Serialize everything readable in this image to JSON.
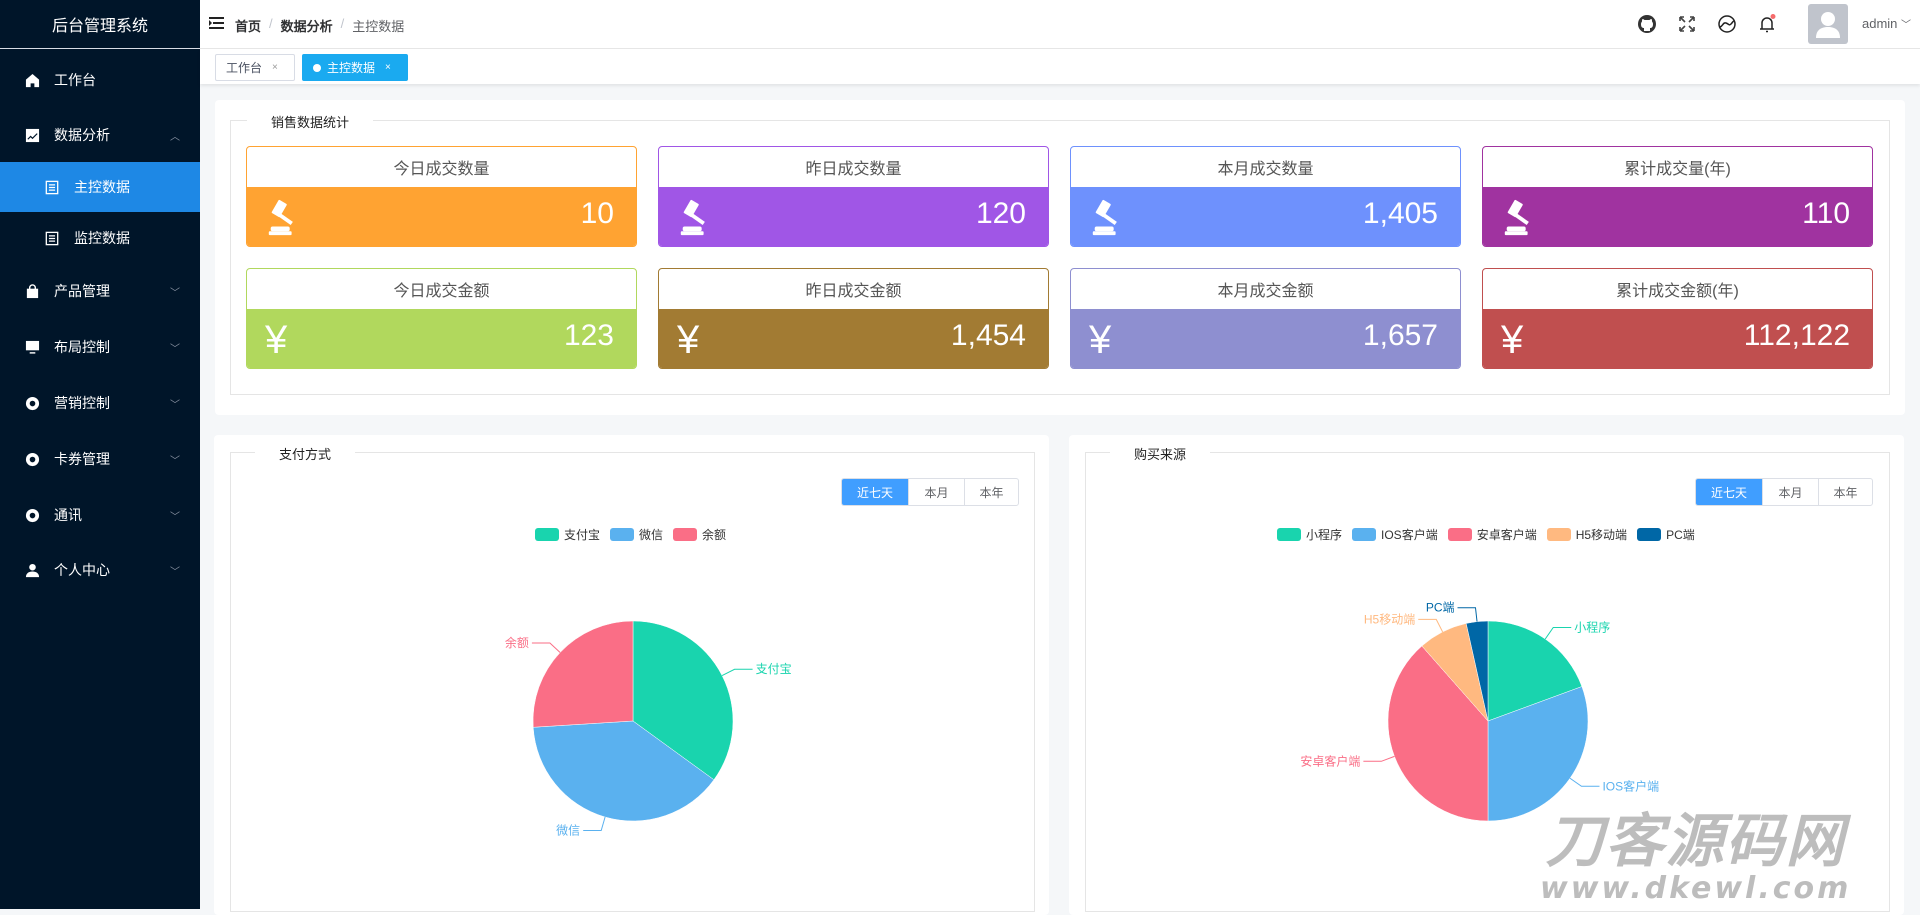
{
  "app": {
    "title": "后台管理系统"
  },
  "sidebar": {
    "items": [
      {
        "label": "工作台",
        "icon": "home-icon"
      },
      {
        "label": "数据分析",
        "icon": "chart-icon",
        "expanded": true
      },
      {
        "label": "主控数据",
        "icon": "document-icon",
        "active": true
      },
      {
        "label": "监控数据",
        "icon": "document-icon"
      },
      {
        "label": "产品管理",
        "icon": "bag-icon"
      },
      {
        "label": "布局控制",
        "icon": "monitor-icon"
      },
      {
        "label": "营销控制",
        "icon": "lifebuoy-icon"
      },
      {
        "label": "卡券管理",
        "icon": "lifebuoy-icon"
      },
      {
        "label": "通讯",
        "icon": "lifebuoy-icon"
      },
      {
        "label": "个人中心",
        "icon": "user-icon"
      }
    ]
  },
  "header": {
    "breadcrumb": [
      "首页",
      "数据分析",
      "主控数据"
    ],
    "separator": "/",
    "user": "admin",
    "notification_dot_color": "#f56c6c"
  },
  "tabs": [
    {
      "label": "工作台",
      "close": "×"
    },
    {
      "label": "主控数据",
      "close": "×",
      "active": true
    }
  ],
  "sales": {
    "title": "销售数据统计",
    "cards": [
      {
        "label": "今日成交数量",
        "value": "10",
        "icon": "gavel-icon",
        "color": "#ffa332"
      },
      {
        "label": "昨日成交数量",
        "value": "120",
        "icon": "gavel-icon",
        "color": "#a056e6"
      },
      {
        "label": "本月成交数量",
        "value": "1,405",
        "icon": "gavel-icon",
        "color": "#6e91fd"
      },
      {
        "label": "累计成交量(年)",
        "value": "110",
        "icon": "gavel-icon",
        "color": "#a033a0"
      },
      {
        "label": "今日成交金额",
        "value": "123",
        "icon": "yen-icon",
        "color": "#b1d85d"
      },
      {
        "label": "昨日成交金额",
        "value": "1,454",
        "icon": "yen-icon",
        "color": "#a27b33"
      },
      {
        "label": "本月成交金额",
        "value": "1,657",
        "icon": "yen-icon",
        "color": "#8e8fd0"
      },
      {
        "label": "累计成交金额(年)",
        "value": "112,122",
        "icon": "yen-icon",
        "color": "#c04f4f"
      }
    ],
    "yen": "¥"
  },
  "ranges": [
    "近七天",
    "本月",
    "本年"
  ],
  "chart_data": [
    {
      "type": "pie",
      "title": "支付方式",
      "legend_position": "top",
      "selected_range": "近七天",
      "categories": [
        "支付宝",
        "微信",
        "余额"
      ],
      "values": [
        35,
        39,
        26
      ],
      "unit": "percent (estimated)",
      "colors": [
        "#19d4ae",
        "#5ab1ef",
        "#fa6e86"
      ]
    },
    {
      "type": "pie",
      "title": "购买来源",
      "legend_position": "top",
      "selected_range": "近七天",
      "categories": [
        "小程序",
        "IOS客户端",
        "安卓客户端",
        "H5移动端",
        "PC端"
      ],
      "values": [
        19.4,
        30.6,
        38.5,
        8,
        3.5
      ],
      "unit": "percent (estimated)",
      "colors": [
        "#19d4ae",
        "#5ab1ef",
        "#fa6e86",
        "#ffb980",
        "#0067a6"
      ]
    }
  ],
  "watermark": {
    "line1": "刀客源码网",
    "line2": "www.dkewl.com"
  }
}
